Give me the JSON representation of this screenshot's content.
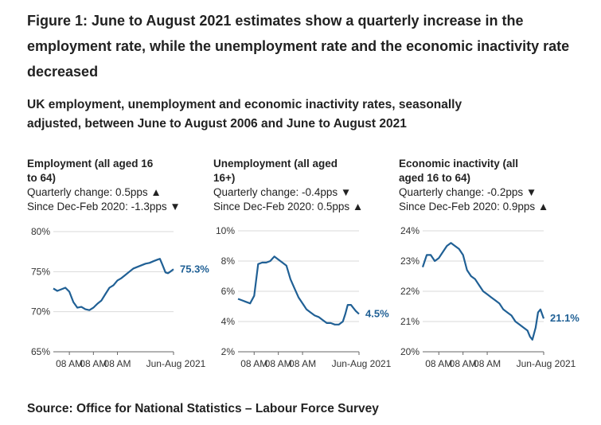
{
  "figure": {
    "title": "Figure 1: June to August 2021 estimates show a quarterly increase in the employment rate, while the unemployment rate and the economic inactivity rate decreased",
    "subtitle": "UK employment, unemployment and economic inactivity rates, seasonally adjusted, between June to August 2006 and June to August 2021",
    "source": "Source: Office for National Statistics – Labour Force Survey",
    "line_color": "#206095"
  },
  "panels": [
    {
      "title": "Employment (all aged 16 to 64)",
      "title_line1": "Employment (all aged 16",
      "title_line2": "to 64)",
      "quarterly_change": "Quarterly change: 0.5pps ▲",
      "since_dec_feb": "Since Dec-Feb 2020: -1.3pps ▼"
    },
    {
      "title": "Unemployment (all aged 16+)",
      "title_line1": "Unemployment (all aged",
      "title_line2": "16+)",
      "quarterly_change": "Quarterly change: -0.4pps ▼",
      "since_dec_feb": "Since Dec-Feb 2020: 0.5pps ▲"
    },
    {
      "title": "Economic inactivity (all aged 16 to 64)",
      "title_line1": "Economic inactivity (all",
      "title_line2": "aged 16 to 64)",
      "quarterly_change": "Quarterly change: -0.2pps ▼",
      "since_dec_feb": "Since Dec-Feb 2020: 0.9pps ▲"
    }
  ],
  "chart_data": [
    {
      "type": "line",
      "title": "Employment (all aged 16 to 64)",
      "ylim": [
        65,
        80
      ],
      "yticks": [
        65,
        70,
        75,
        80
      ],
      "ytick_labels": [
        "65%",
        "70%",
        "75%",
        "80%"
      ],
      "x_tick_labels": [
        "08 AM",
        "08 AM",
        "08 AM",
        "Jun-Aug 2021"
      ],
      "x_tick_positions": [
        2,
        5,
        8,
        15
      ],
      "end_label": "75.3%",
      "x": [
        0,
        0.5,
        1,
        1.5,
        2,
        2.5,
        3,
        3.5,
        4,
        4.5,
        5,
        5.5,
        6,
        6.5,
        7,
        7.5,
        8,
        8.5,
        9,
        9.5,
        10,
        10.5,
        11,
        11.5,
        12,
        12.5,
        13,
        13.3,
        13.6,
        14,
        14.3,
        14.6,
        15
      ],
      "y": [
        72.9,
        72.6,
        72.8,
        73.0,
        72.5,
        71.2,
        70.5,
        70.6,
        70.3,
        70.2,
        70.5,
        71.0,
        71.4,
        72.2,
        73.0,
        73.3,
        73.9,
        74.2,
        74.6,
        75.0,
        75.4,
        75.6,
        75.8,
        76.0,
        76.1,
        76.3,
        76.5,
        76.6,
        75.9,
        74.9,
        74.8,
        75.0,
        75.3
      ]
    },
    {
      "type": "line",
      "title": "Unemployment (all aged 16+)",
      "ylim": [
        2,
        10
      ],
      "yticks": [
        2,
        4,
        6,
        8,
        10
      ],
      "ytick_labels": [
        "2%",
        "4%",
        "6%",
        "8%",
        "10%"
      ],
      "x_tick_labels": [
        "08 AM",
        "08 AM",
        "08 AM",
        "Jun-Aug 2021"
      ],
      "x_tick_positions": [
        2,
        5,
        8,
        15
      ],
      "end_label": "4.5%",
      "x": [
        0,
        0.5,
        1,
        1.5,
        2,
        2.5,
        3,
        3.5,
        4,
        4.5,
        5,
        5.5,
        6,
        6.5,
        7,
        7.5,
        8,
        8.5,
        9,
        9.5,
        10,
        10.5,
        11,
        11.5,
        12,
        12.5,
        13,
        13.3,
        13.6,
        14,
        14.3,
        14.6,
        15
      ],
      "y": [
        5.5,
        5.4,
        5.3,
        5.2,
        5.7,
        7.8,
        7.9,
        7.9,
        8.0,
        8.3,
        8.1,
        7.9,
        7.7,
        6.8,
        6.2,
        5.6,
        5.2,
        4.8,
        4.6,
        4.4,
        4.3,
        4.1,
        3.9,
        3.9,
        3.8,
        3.8,
        4.0,
        4.5,
        5.1,
        5.1,
        4.9,
        4.7,
        4.5
      ]
    },
    {
      "type": "line",
      "title": "Economic inactivity (all aged 16 to 64)",
      "ylim": [
        20,
        24
      ],
      "yticks": [
        20,
        21,
        22,
        23,
        24
      ],
      "ytick_labels": [
        "20%",
        "21%",
        "22%",
        "23%",
        "24%"
      ],
      "x_tick_labels": [
        "08 AM",
        "08 AM",
        "08 AM",
        "Jun-Aug 2021"
      ],
      "x_tick_positions": [
        2,
        5,
        8,
        15
      ],
      "end_label": "21.1%",
      "x": [
        0,
        0.5,
        1,
        1.5,
        2,
        2.5,
        3,
        3.5,
        4,
        4.5,
        5,
        5.5,
        6,
        6.5,
        7,
        7.5,
        8,
        8.5,
        9,
        9.5,
        10,
        10.5,
        11,
        11.5,
        12,
        12.5,
        13,
        13.3,
        13.6,
        14,
        14.3,
        14.6,
        15
      ],
      "y": [
        22.8,
        23.2,
        23.2,
        23.0,
        23.1,
        23.3,
        23.5,
        23.6,
        23.5,
        23.4,
        23.2,
        22.7,
        22.5,
        22.4,
        22.2,
        22.0,
        21.9,
        21.8,
        21.7,
        21.6,
        21.4,
        21.3,
        21.2,
        21.0,
        20.9,
        20.8,
        20.7,
        20.5,
        20.4,
        20.8,
        21.3,
        21.4,
        21.1
      ]
    }
  ]
}
